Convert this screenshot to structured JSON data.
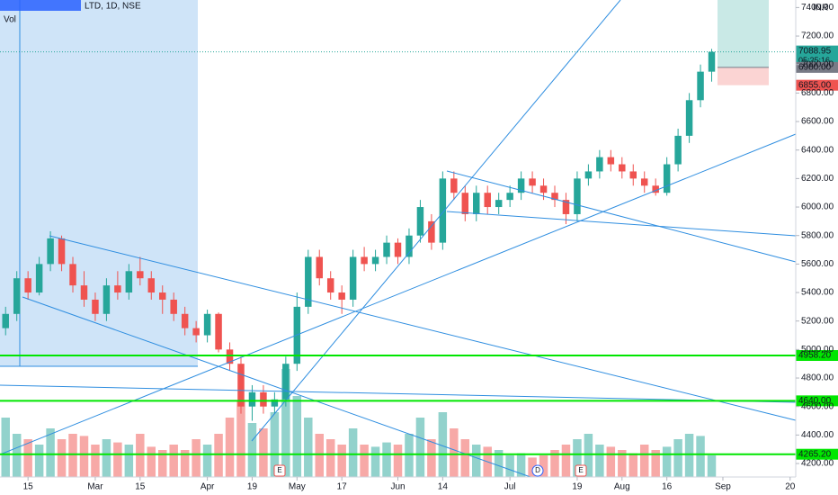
{
  "chart_data": {
    "type": "candlestick",
    "title": "LTD, 1D, NSE",
    "volume_label": "Vol",
    "currency": "INR",
    "categories": [
      null,
      null,
      "15",
      null,
      null,
      null,
      null,
      null,
      "Mar",
      null,
      null,
      null,
      "15",
      null,
      null,
      null,
      null,
      null,
      "Apr",
      null,
      null,
      null,
      "19",
      null,
      null,
      null,
      "May",
      null,
      null,
      null,
      "17",
      null,
      null,
      null,
      null,
      "Jun",
      null,
      null,
      null,
      "14",
      null,
      null,
      null,
      null,
      null,
      "Jul",
      null,
      null,
      null,
      null,
      null,
      "19",
      null,
      null,
      null,
      "Aug",
      null,
      null,
      null,
      "16",
      null,
      null,
      null,
      null,
      "Sep",
      null,
      null,
      null,
      null,
      null,
      "20"
    ],
    "open": [
      5150,
      5250,
      5500,
      5400,
      5600,
      5780,
      5600,
      5450,
      5350,
      5250,
      5450,
      5400,
      5550,
      5500,
      5400,
      5350,
      5250,
      5150,
      5100,
      5250,
      5000,
      4900,
      4600,
      4700,
      4600,
      4650,
      4900,
      5300,
      5650,
      5500,
      5400,
      5350,
      5650,
      5600,
      5650,
      5750,
      5650,
      5800,
      5900,
      5750,
      6200,
      6100,
      5950,
      6100,
      6000,
      6050,
      6100,
      6200,
      6150,
      6100,
      6050,
      5950,
      6200,
      6250,
      6350,
      6300,
      6250,
      6200,
      6150,
      6100,
      6300,
      6500,
      6750,
      6950,
      null,
      null,
      null,
      null,
      null,
      null,
      null
    ],
    "high": [
      5300,
      5550,
      5550,
      5650,
      5830,
      5800,
      5650,
      5550,
      5400,
      5500,
      5550,
      5600,
      5650,
      5550,
      5450,
      5400,
      5300,
      5200,
      5280,
      5260,
      5050,
      4950,
      4750,
      4750,
      4700,
      4950,
      5400,
      5700,
      5700,
      5550,
      5450,
      5700,
      5720,
      5700,
      5800,
      5780,
      5850,
      6050,
      5950,
      6250,
      6250,
      6150,
      6150,
      6150,
      6100,
      6150,
      6250,
      6250,
      6200,
      6150,
      6100,
      6250,
      6300,
      6400,
      6400,
      6350,
      6300,
      6250,
      6200,
      6350,
      6550,
      6800,
      7000,
      7110,
      null,
      null,
      null,
      null,
      null,
      null,
      null
    ],
    "low": [
      5100,
      5200,
      5350,
      5380,
      5550,
      5550,
      5400,
      5300,
      5200,
      5200,
      5350,
      5350,
      5450,
      5350,
      5250,
      5200,
      5100,
      5050,
      5050,
      4980,
      4850,
      4550,
      4500,
      4550,
      4550,
      4600,
      4850,
      5250,
      5450,
      5350,
      5250,
      5300,
      5550,
      5550,
      5600,
      5600,
      5600,
      5750,
      5700,
      5700,
      6050,
      5900,
      5900,
      5950,
      5950,
      6000,
      6050,
      6100,
      6050,
      6000,
      5880,
      5900,
      6150,
      6200,
      6250,
      6200,
      6150,
      6100,
      6080,
      6080,
      6250,
      6450,
      6700,
      6880,
      null,
      null,
      null,
      null,
      null,
      null,
      null
    ],
    "close": [
      5250,
      5500,
      5400,
      5600,
      5780,
      5600,
      5450,
      5350,
      5250,
      5450,
      5400,
      5550,
      5500,
      5400,
      5350,
      5250,
      5150,
      5100,
      5250,
      5000,
      4900,
      4600,
      4700,
      4600,
      4650,
      4900,
      5300,
      5650,
      5500,
      5400,
      5350,
      5650,
      5600,
      5650,
      5750,
      5650,
      5800,
      6000,
      5750,
      6200,
      6100,
      5950,
      6100,
      6000,
      6050,
      6100,
      6200,
      6150,
      6100,
      6050,
      5950,
      6200,
      6250,
      6350,
      6300,
      6250,
      6200,
      6150,
      6100,
      6300,
      6500,
      6750,
      6950,
      7088.95,
      null,
      null,
      null,
      null,
      null,
      null,
      null
    ],
    "volume": [
      55,
      40,
      35,
      30,
      45,
      35,
      40,
      38,
      30,
      35,
      32,
      30,
      40,
      28,
      25,
      30,
      25,
      35,
      30,
      40,
      55,
      70,
      50,
      45,
      60,
      100,
      75,
      55,
      40,
      35,
      30,
      45,
      30,
      28,
      32,
      30,
      40,
      55,
      35,
      60,
      45,
      35,
      30,
      28,
      25,
      20,
      22,
      18,
      20,
      25,
      30,
      35,
      40,
      30,
      28,
      25,
      22,
      30,
      25,
      28,
      35,
      40,
      38,
      20,
      null,
      null,
      null,
      null,
      null,
      null,
      null
    ],
    "vlim": [
      0,
      100
    ],
    "up_color": "#26a69a",
    "down_color": "#ef5350",
    "ylim": [
      4137,
      7453
    ],
    "yticks": [
      {
        "value": 4200,
        "label": "4200.00"
      },
      {
        "value": 4400,
        "label": "4400.00"
      },
      {
        "value": 4600,
        "label": "4600.00"
      },
      {
        "value": 4800,
        "label": "4800.00"
      },
      {
        "value": 5000,
        "label": "5000.00"
      },
      {
        "value": 5200,
        "label": "5200.00"
      },
      {
        "value": 5400,
        "label": "5400.00"
      },
      {
        "value": 5600,
        "label": "5600.00"
      },
      {
        "value": 5800,
        "label": "5800.00"
      },
      {
        "value": 6000,
        "label": "6000.00"
      },
      {
        "value": 6200,
        "label": "6200.00"
      },
      {
        "value": 6400,
        "label": "6400.00"
      },
      {
        "value": 6600,
        "label": "6600.00"
      },
      {
        "value": 6800,
        "label": "6800.00"
      },
      {
        "value": 7000,
        "label": "7000.00"
      },
      {
        "value": 7200,
        "label": "7200.00"
      },
      {
        "value": 7400,
        "label": "7400.00"
      }
    ],
    "levels": [
      {
        "value": 4958.2,
        "label": "4958.20"
      },
      {
        "value": 4640,
        "label": "4640.00"
      },
      {
        "value": 4265.2,
        "label": "4265.20"
      }
    ],
    "last_price": {
      "value": 7088.95,
      "label": "7088.95",
      "countdown": "05:25:16"
    },
    "position": {
      "entry": {
        "value": 6980,
        "label": "6980.00"
      },
      "stop": {
        "value": 6855,
        "label": "6855.00"
      }
    },
    "events": [
      "E",
      "D",
      "E"
    ]
  }
}
